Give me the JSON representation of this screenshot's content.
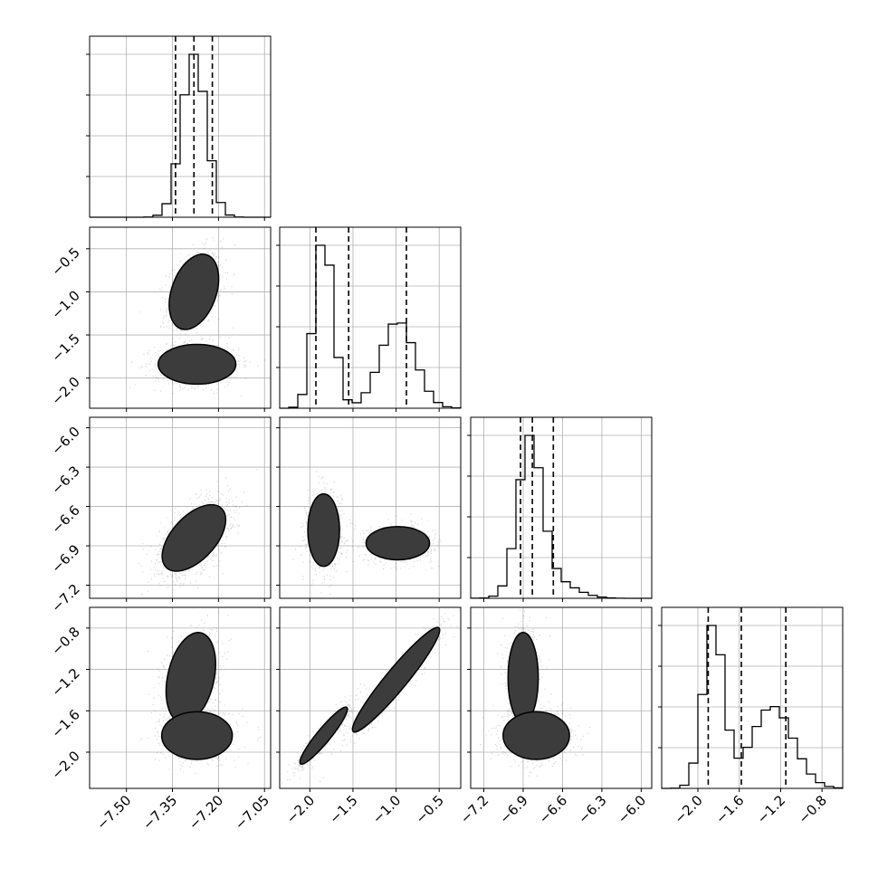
{
  "chart_data": {
    "type": "corner",
    "ndim": 4,
    "parameters": [
      {
        "index": 0,
        "range": [
          -7.62,
          -7.03
        ],
        "ticks": [
          -7.5,
          -7.35,
          -7.2,
          -7.05
        ],
        "tick_labels": [
          "−7.50",
          "−7.35",
          "−7.20",
          "−7.05"
        ],
        "quantiles": [
          -7.34,
          -7.28,
          -7.22
        ],
        "modes": [
          {
            "mu": -7.28,
            "sigma": 0.04,
            "w": 1.0
          }
        ]
      },
      {
        "index": 1,
        "range": [
          -2.35,
          -0.25
        ],
        "ticks": [
          -2.0,
          -1.5,
          -1.0,
          -0.5
        ],
        "tick_labels": [
          "−2.0",
          "−1.5",
          "−1.0",
          "−0.5"
        ],
        "quantiles": [
          -1.93,
          -1.55,
          -0.88
        ],
        "modes": [
          {
            "mu": -1.84,
            "sigma": 0.11,
            "w": 0.52
          },
          {
            "mu": -0.98,
            "sigma": 0.2,
            "w": 0.48
          }
        ]
      },
      {
        "index": 2,
        "range": [
          -7.3,
          -5.92
        ],
        "ticks": [
          -7.2,
          -6.9,
          -6.6,
          -6.3,
          -6.0
        ],
        "tick_labels": [
          "−7.2",
          "−6.9",
          "−6.6",
          "−6.3",
          "−6.0"
        ],
        "quantiles": [
          -6.92,
          -6.83,
          -6.67
        ],
        "modes": [
          {
            "mu": -6.85,
            "sigma": 0.09,
            "w": 0.8
          },
          {
            "mu": -6.7,
            "sigma": 0.17,
            "w": 0.2
          }
        ]
      },
      {
        "index": 3,
        "range": [
          -2.35,
          -0.6
        ],
        "ticks": [
          -2.0,
          -1.6,
          -1.2,
          -0.8
        ],
        "tick_labels": [
          "−2.0",
          "−1.6",
          "−1.2",
          "−0.8"
        ],
        "quantiles": [
          -1.9,
          -1.58,
          -1.15
        ],
        "modes": [
          {
            "mu": -1.85,
            "sigma": 0.1,
            "w": 0.5
          },
          {
            "mu": -1.28,
            "sigma": 0.2,
            "w": 0.5
          }
        ]
      }
    ],
    "pairs": [
      {
        "row": 1,
        "col": 0,
        "blobs": [
          {
            "cx": -7.28,
            "cy": -1.0,
            "sx": 0.035,
            "sy": 0.19,
            "rho": 0.35,
            "w": 0.5
          },
          {
            "cx": -7.27,
            "cy": -1.84,
            "sx": 0.055,
            "sy": 0.1,
            "rho": 0.0,
            "w": 0.5
          }
        ]
      },
      {
        "row": 2,
        "col": 0,
        "blobs": [
          {
            "cx": -7.28,
            "cy": -6.84,
            "sx": 0.045,
            "sy": 0.11,
            "rho": 0.55,
            "w": 1.0
          }
        ]
      },
      {
        "row": 2,
        "col": 1,
        "blobs": [
          {
            "cx": -1.84,
            "cy": -6.78,
            "sx": 0.08,
            "sy": 0.12,
            "rho": 0.0,
            "w": 0.5
          },
          {
            "cx": -0.98,
            "cy": -6.88,
            "sx": 0.16,
            "sy": 0.055,
            "rho": 0.0,
            "w": 0.5
          }
        ]
      },
      {
        "row": 3,
        "col": 0,
        "blobs": [
          {
            "cx": -7.29,
            "cy": -1.28,
            "sx": 0.035,
            "sy": 0.19,
            "rho": 0.3,
            "w": 0.5
          },
          {
            "cx": -7.27,
            "cy": -1.84,
            "sx": 0.05,
            "sy": 0.1,
            "rho": 0.0,
            "w": 0.5
          }
        ]
      },
      {
        "row": 3,
        "col": 1,
        "blobs": [
          {
            "cx": -1.84,
            "cy": -1.84,
            "sx": 0.12,
            "sy": 0.12,
            "rho": 0.93,
            "w": 0.5
          },
          {
            "cx": -1.0,
            "cy": -1.3,
            "sx": 0.22,
            "sy": 0.22,
            "rho": 0.95,
            "w": 0.5
          }
        ]
      },
      {
        "row": 3,
        "col": 2,
        "blobs": [
          {
            "cx": -6.9,
            "cy": -1.28,
            "sx": 0.05,
            "sy": 0.19,
            "rho": 0.0,
            "w": 0.5
          },
          {
            "cx": -6.8,
            "cy": -1.84,
            "sx": 0.11,
            "sy": 0.1,
            "rho": 0.0,
            "w": 0.5
          }
        ]
      }
    ],
    "hist_bins": 20,
    "contour_levels": [
      0.5,
      1.0,
      1.5,
      2.0
    ],
    "grid": true,
    "line_style_quantiles": "dashed"
  }
}
